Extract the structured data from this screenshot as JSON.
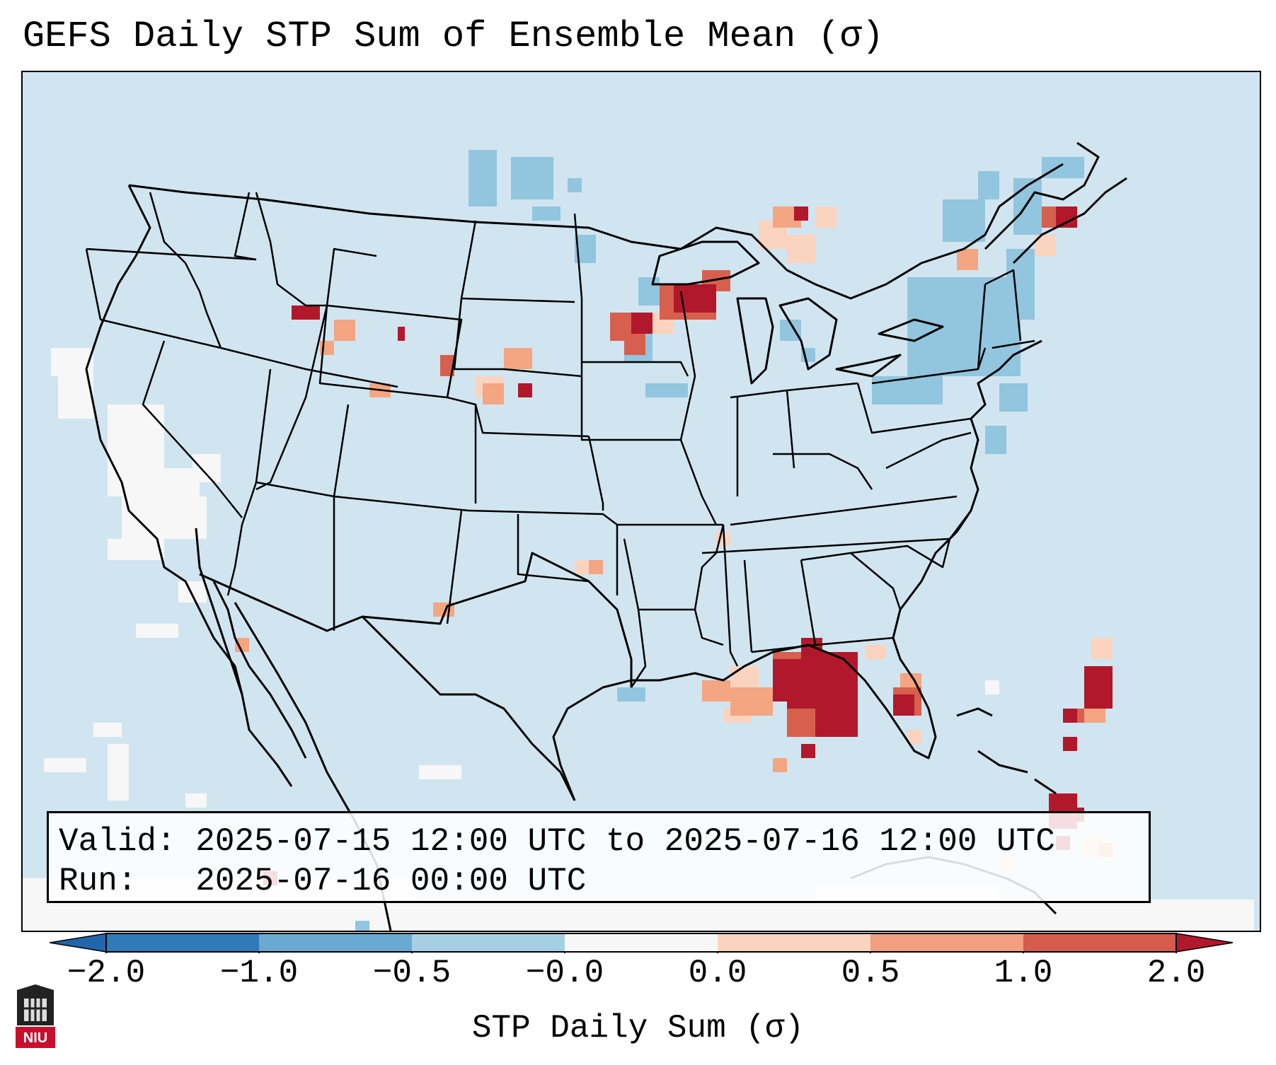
{
  "title": "GEFS Daily STP Sum of Ensemble Mean (σ)",
  "info": {
    "valid_label": "Valid:",
    "valid_value": "2025-07-15 12:00 UTC to 2025-07-16 12:00 UTC",
    "run_label": "Run:",
    "run_value": "2025-07-16 00:00 UTC"
  },
  "colorbar": {
    "label": "STP Daily Sum (σ)",
    "ticks": [
      "−2.0",
      "−1.0",
      "−0.5",
      "−0.0",
      "0.0",
      "0.5",
      "1.0",
      "2.0"
    ],
    "segment_colors": [
      "#2f7ab8",
      "#6aa9d2",
      "#a7cfe4",
      "#f7f7f7",
      "#fbd4c0",
      "#f19f7f",
      "#d55b4d"
    ],
    "under_color": "#2166ac",
    "over_color": "#b2182b"
  },
  "map": {
    "background_color": "#d1e5f0",
    "region": "Contiguous United States",
    "highlight_regions": [
      {
        "name": "Florida panhandle / Gulf coast",
        "level": 2.0
      },
      {
        "name": "Upper Michigan / Lake Superior",
        "level": 1.5
      },
      {
        "name": "Quebec",
        "level": 1.5
      },
      {
        "name": "Ontario",
        "level": 1.0
      },
      {
        "name": "Southwest Montana",
        "level": 2.0
      },
      {
        "name": "Nebraska / South Dakota",
        "level": 0.8
      },
      {
        "name": "Cuba / Bahamas",
        "level": 1.5
      },
      {
        "name": "New York / New England",
        "level": -0.6
      }
    ]
  },
  "logo": {
    "text": "NIU"
  }
}
